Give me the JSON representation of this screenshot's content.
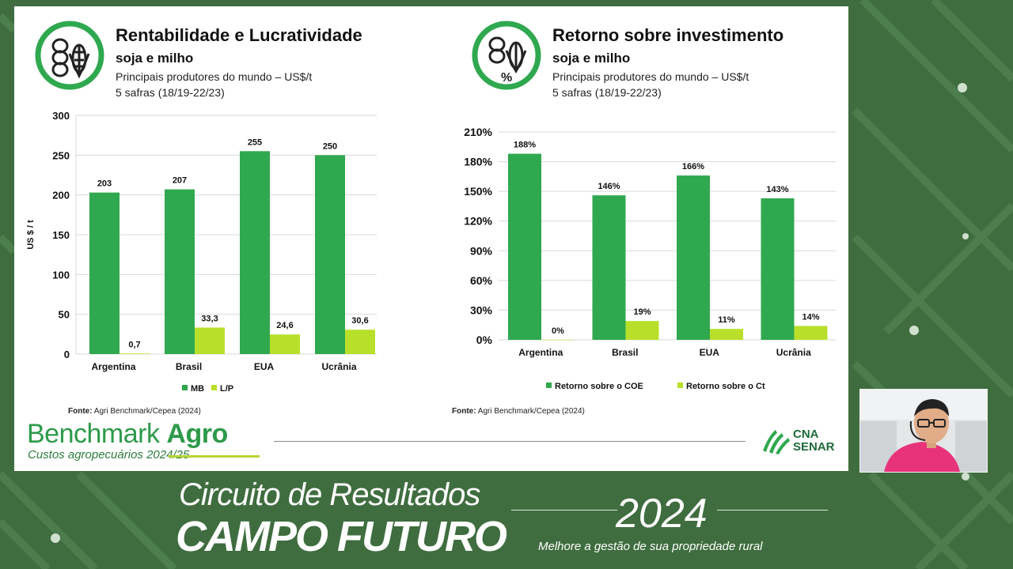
{
  "chart1": {
    "title": "Rentabilidade e Lucratividade",
    "subtitle": "soja e milho",
    "desc1": "Principais produtores do mundo – US$/t",
    "desc2": "5 safras (18/19-22/23)",
    "source_label": "Fonte:",
    "source_text": "Agri Benchmark/Cepea (2024)"
  },
  "chart2": {
    "title": "Retorno sobre investimento",
    "subtitle": "soja e milho",
    "desc1": "Principais produtores do mundo – US$/t",
    "desc2": "5 safras (18/19-22/23)",
    "source_label": "Fonte:",
    "source_text": "Agri Benchmark/Cepea (2024)"
  },
  "chart_data": [
    {
      "type": "bar",
      "categories": [
        "Argentina",
        "Brasil",
        "EUA",
        "Ucrânia"
      ],
      "series": [
        {
          "name": "MB",
          "values": [
            203,
            207,
            255,
            250
          ],
          "labels": [
            "203",
            "207",
            "255",
            "250"
          ],
          "color": "#2fa84f"
        },
        {
          "name": "L/P",
          "values": [
            0.7,
            33.3,
            24.6,
            30.6
          ],
          "labels": [
            "0,7",
            "33,3",
            "24,6",
            "30,6"
          ],
          "color": "#b8e02a"
        }
      ],
      "title": "Rentabilidade e Lucratividade",
      "ylabel": "US $ / t",
      "xlabel": "",
      "ylim": [
        0,
        300
      ],
      "yticks": [
        0,
        50,
        100,
        150,
        200,
        250,
        300
      ],
      "ytick_labels": [
        "0",
        "50",
        "100",
        "150",
        "200",
        "250",
        "300"
      ],
      "grid": true,
      "legend": "bottom"
    },
    {
      "type": "bar",
      "categories": [
        "Argentina",
        "Brasil",
        "EUA",
        "Ucrânia"
      ],
      "series": [
        {
          "name": "Retorno sobre o COE",
          "values": [
            188,
            146,
            166,
            143
          ],
          "labels": [
            "188%",
            "146%",
            "166%",
            "143%"
          ],
          "color": "#2fa84f"
        },
        {
          "name": "Retorno sobre o Ct",
          "values": [
            0,
            19,
            11,
            14
          ],
          "labels": [
            "0%",
            "19%",
            "11%",
            "14%"
          ],
          "color": "#b8e02a"
        }
      ],
      "title": "Retorno sobre investimento",
      "ylabel": "",
      "xlabel": "",
      "ylim": [
        0,
        210
      ],
      "yticks": [
        0,
        30,
        60,
        90,
        120,
        150,
        180,
        210
      ],
      "ytick_labels": [
        "0%",
        "30%",
        "60%",
        "90%",
        "120%",
        "150%",
        "180%",
        "210%"
      ],
      "grid": true,
      "legend": "bottom"
    }
  ],
  "branding": {
    "benchmark": "Benchmark",
    "agro": "Agro",
    "custos": "Custos agropecuários 2024/25",
    "cna_line1": "CNA",
    "cna_line2": "SENAR"
  },
  "lower_third": {
    "circuito": "Circuito de Resultados",
    "campo_futuro": "CAMPO FUTURO",
    "year": "2024",
    "tagline": "Melhore a gestão de sua propriedade rural"
  },
  "colors": {
    "primary_green": "#2fa84f",
    "lime": "#b8e02a",
    "background": "#3f6d3f"
  }
}
